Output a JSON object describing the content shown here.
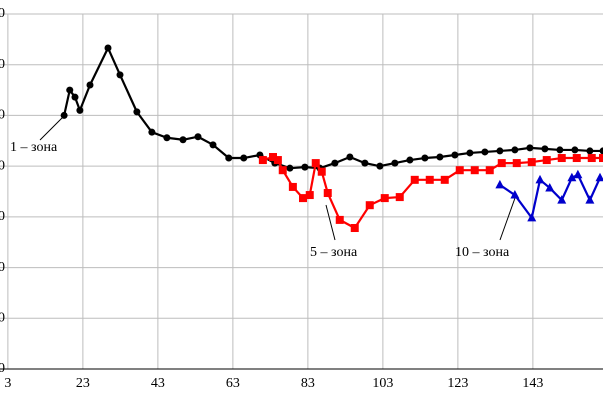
{
  "chart_data": {
    "type": "line",
    "xlim": [
      0.9,
      161.7
    ],
    "xticks": [
      3,
      23,
      43,
      63,
      83,
      103,
      123,
      143
    ],
    "ylim": [
      0,
      7
    ],
    "yticks": [
      0,
      {
        "value": 1,
        "label": "0"
      },
      {
        "value": 2,
        "label": "0"
      },
      {
        "value": 3,
        "label": "0"
      },
      {
        "value": 4,
        "label": "0"
      },
      {
        "value": 5,
        "label": "0"
      },
      {
        "value": 6,
        "label": "0"
      },
      {
        "value": 7,
        "label": "0"
      }
    ],
    "grid": true,
    "series": [
      {
        "color": "#000000",
        "marker": "circle",
        "x": [
          18,
          19.5,
          20.9,
          22.2,
          24.9,
          29.7,
          32.9,
          37.4,
          41.4,
          45.4,
          49.7,
          53.7,
          57.7,
          61.9,
          65.9,
          70.2,
          74.2,
          78.2,
          82.2,
          86.2,
          90.2,
          94.2,
          98.2,
          102.2,
          106.2,
          110.2,
          114.2,
          118.2,
          122.2,
          126.2,
          130.2,
          134.2,
          138.2,
          142.2,
          146.2,
          150.2,
          154.2,
          158.2,
          161.7
        ],
        "values": [
          5.0,
          5.5,
          5.36,
          5.1,
          5.6,
          6.33,
          5.8,
          5.07,
          4.67,
          4.56,
          4.52,
          4.58,
          4.42,
          4.16,
          4.16,
          4.22,
          4.06,
          3.96,
          3.98,
          3.96,
          4.06,
          4.18,
          4.06,
          4.0,
          4.06,
          4.12,
          4.16,
          4.18,
          4.22,
          4.26,
          4.28,
          4.3,
          4.32,
          4.36,
          4.34,
          4.32,
          4.32,
          4.3,
          4.3
        ]
      },
      {
        "color": "#ff0000",
        "marker": "square",
        "x": [
          71,
          73.7,
          75,
          76.3,
          79,
          81.7,
          83.5,
          85.1,
          86.7,
          88.3,
          91.5,
          95.5,
          99.5,
          103.5,
          107.5,
          111.5,
          115.5,
          119.5,
          123.5,
          127.5,
          131.5,
          134.7,
          138.7,
          142.7,
          146.7,
          150.7,
          154.7,
          158.7,
          161.7
        ],
        "values": [
          4.12,
          4.18,
          4.12,
          3.92,
          3.59,
          3.37,
          3.43,
          4.06,
          3.89,
          3.47,
          2.94,
          2.78,
          3.23,
          3.37,
          3.39,
          3.73,
          3.73,
          3.73,
          3.92,
          3.92,
          3.92,
          4.06,
          4.06,
          4.08,
          4.12,
          4.16,
          4.16,
          4.16,
          4.16
        ]
      },
      {
        "color": "#0000cc",
        "marker": "triangle",
        "x": [
          134.2,
          138.2,
          142.7,
          144.9,
          147.5,
          150.7,
          153.4,
          155,
          158.2,
          160.9
        ],
        "values": [
          3.63,
          3.43,
          2.98,
          3.73,
          3.57,
          3.33,
          3.77,
          3.83,
          3.33,
          3.77
        ]
      }
    ],
    "annotations": [
      "1 – зона",
      "5 – зона",
      "10 – зона"
    ]
  }
}
